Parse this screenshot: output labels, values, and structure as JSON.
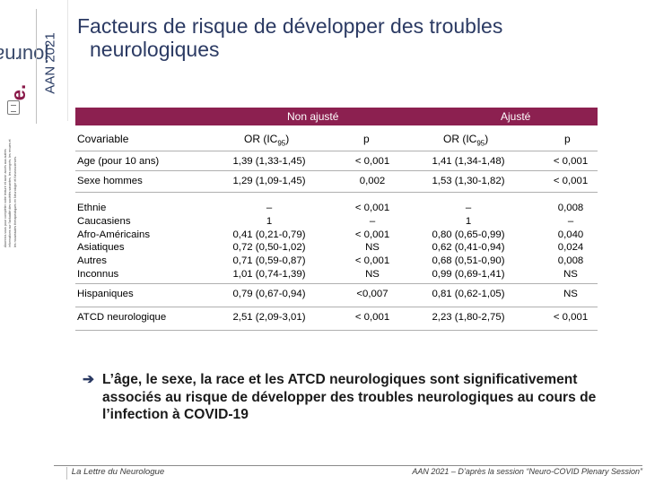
{
  "brand": {
    "journal_prefix": "e.",
    "journal_name": "journal",
    "event": "AAN 2021",
    "disclaimer": "Abonnez-vous pour compléter votre lecture et avoir accès aux autres informations sur l'actualité des sociétés savantes, les congrès, les revues et les nouveautés thérapeutiques en Neurologie et Neurosciences."
  },
  "title": {
    "line1": "Facteurs de risque de développer des troubles",
    "line2": "neurologiques"
  },
  "table": {
    "group_unadjusted": "Non ajusté",
    "group_adjusted": "Ajusté",
    "col_covariable": "Covariable",
    "col_or_unadj": "OR (IC95)",
    "col_p_unadj": "p",
    "col_or_adj": "OR (IC95)",
    "col_p_adj": "p",
    "rows": [
      {
        "covariable": "Age (pour 10 ans)",
        "or_unadj": "1,39 (1,33-1,45)",
        "p_unadj": "< 0,001",
        "or_adj": "1,41 (1,34-1,48)",
        "p_adj": "< 0,001"
      },
      {
        "covariable": "Sexe hommes",
        "or_unadj": "1,29 (1,09-1,45)",
        "p_unadj": "0,002",
        "or_adj": "1,53 (1,30-1,82)",
        "p_adj": "< 0,001"
      },
      {
        "covariable": "Ethnie\nCaucasiens\nAfro-Américains\nAsiatiques\nAutres\nInconnus",
        "or_unadj": "–\n1\n0,41 (0,21-0,79)\n0,72 (0,50-1,02)\n0,71 (0,59-0,87)\n1,01 (0,74-1,39)",
        "p_unadj": "< 0,001\n–\n< 0,001\nNS\n< 0,001\nNS",
        "or_adj": "–\n1\n0,80 (0,65-0,99)\n0,62 (0,41-0,94)\n0,68 (0,51-0,90)\n0,99 (0,69-1,41)",
        "p_adj": "0,008\n–\n0,040\n0,024\n0,008\nNS"
      },
      {
        "covariable": "Hispaniques",
        "or_unadj": "0,79 (0,67-0,94)",
        "p_unadj": "<0,007",
        "or_adj": "0,81 (0,62-1,05)",
        "p_adj": "NS"
      },
      {
        "covariable": "ATCD neurologique",
        "or_unadj": "2,51 (2,09-3,01)",
        "p_unadj": "< 0,001",
        "or_adj": "2,23 (1,80-2,75)",
        "p_adj": "< 0,001"
      }
    ]
  },
  "conclusion": {
    "arrow": "➔",
    "text": "L’âge, le sexe, la race et les ATCD neurologiques sont significativement associés au risque de développer des troubles neurologiques au cours de l’infection à COVID-19"
  },
  "footer": {
    "left": "La Lettre du Neurologue",
    "right": "AAN 2021 – D’après la session “Neuro-COVID Plenary Session”"
  },
  "colors": {
    "header_band": "#8c2050",
    "title": "#2b3a63"
  }
}
